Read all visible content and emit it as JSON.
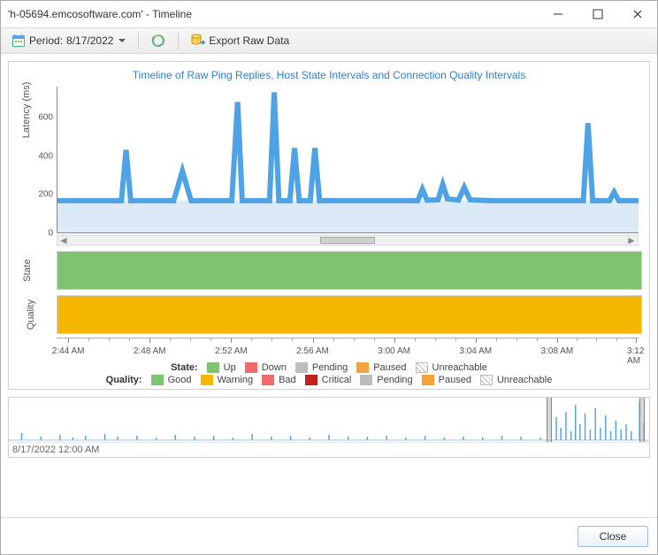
{
  "window": {
    "title": "'h-05694.emcosoftware.com' - Timeline"
  },
  "toolbar": {
    "period_prefix": "Period:",
    "period_value": "8/17/2022",
    "export_label": "Export Raw Data"
  },
  "chart": {
    "title": "Timeline of Raw Ping Replies, Host State Intervals and Connection Quality Intervals",
    "y_label": "Latency (ms)",
    "y_ticks": [
      0,
      200,
      400,
      600
    ],
    "y_max": 760,
    "line_color": "#4da3e6",
    "fill_color": "#dceaf7",
    "baseline": 165,
    "series": [
      [
        0.0,
        165
      ],
      [
        0.06,
        165
      ],
      [
        0.11,
        165
      ],
      [
        0.118,
        430
      ],
      [
        0.126,
        165
      ],
      [
        0.17,
        165
      ],
      [
        0.2,
        165
      ],
      [
        0.215,
        320
      ],
      [
        0.23,
        165
      ],
      [
        0.29,
        165
      ],
      [
        0.3,
        165
      ],
      [
        0.31,
        680
      ],
      [
        0.318,
        165
      ],
      [
        0.34,
        165
      ],
      [
        0.365,
        165
      ],
      [
        0.373,
        730
      ],
      [
        0.381,
        165
      ],
      [
        0.4,
        165
      ],
      [
        0.408,
        440
      ],
      [
        0.416,
        165
      ],
      [
        0.435,
        165
      ],
      [
        0.443,
        440
      ],
      [
        0.451,
        165
      ],
      [
        0.5,
        165
      ],
      [
        0.55,
        165
      ],
      [
        0.6,
        165
      ],
      [
        0.62,
        165
      ],
      [
        0.628,
        225
      ],
      [
        0.636,
        168
      ],
      [
        0.655,
        170
      ],
      [
        0.663,
        250
      ],
      [
        0.671,
        175
      ],
      [
        0.69,
        168
      ],
      [
        0.7,
        235
      ],
      [
        0.71,
        170
      ],
      [
        0.75,
        165
      ],
      [
        0.8,
        165
      ],
      [
        0.85,
        165
      ],
      [
        0.905,
        165
      ],
      [
        0.913,
        570
      ],
      [
        0.921,
        165
      ],
      [
        0.95,
        165
      ],
      [
        0.958,
        210
      ],
      [
        0.966,
        165
      ],
      [
        1.0,
        165
      ]
    ],
    "x_ticks_major": [
      {
        "pos": 0.02,
        "label": "2:44 AM"
      },
      {
        "pos": 0.16,
        "label": "2:48 AM"
      },
      {
        "pos": 0.3,
        "label": "2:52 AM"
      },
      {
        "pos": 0.44,
        "label": "2:56 AM"
      },
      {
        "pos": 0.58,
        "label": "3:00 AM"
      },
      {
        "pos": 0.72,
        "label": "3:04 AM"
      },
      {
        "pos": 0.86,
        "label": "3:08 AM"
      },
      {
        "pos": 0.995,
        "label": "3:12 AM"
      }
    ],
    "minor_ticks_per_major": 4
  },
  "bands": {
    "state": {
      "label": "State",
      "color": "#7ec470"
    },
    "quality": {
      "label": "Quality",
      "color": "#f5b700"
    }
  },
  "legend_state": {
    "title": "State:",
    "items": [
      {
        "label": "Up",
        "color": "#7ec470"
      },
      {
        "label": "Down",
        "color": "#f06a6a"
      },
      {
        "label": "Pending",
        "color": "#bdbdbd"
      },
      {
        "label": "Paused",
        "color": "#f4a23a"
      },
      {
        "label": "Unreachable",
        "hatched": true
      }
    ]
  },
  "legend_quality": {
    "title": "Quality:",
    "items": [
      {
        "label": "Good",
        "color": "#7ec470"
      },
      {
        "label": "Warning",
        "color": "#f5b700"
      },
      {
        "label": "Bad",
        "color": "#f06a6a"
      },
      {
        "label": "Critical",
        "color": "#c21f1f"
      },
      {
        "label": "Pending",
        "color": "#bdbdbd"
      },
      {
        "label": "Paused",
        "color": "#f4a23a"
      },
      {
        "label": "Unreachable",
        "hatched": true
      }
    ]
  },
  "overview": {
    "timestamp_label": "8/17/2022 12:00 AM",
    "line_color": "#4da3e6",
    "handles": [
      0.84,
      0.985
    ],
    "spikes": [
      [
        0.02,
        8
      ],
      [
        0.05,
        4
      ],
      [
        0.08,
        6
      ],
      [
        0.1,
        3
      ],
      [
        0.12,
        5
      ],
      [
        0.15,
        7
      ],
      [
        0.17,
        4
      ],
      [
        0.2,
        5
      ],
      [
        0.23,
        3
      ],
      [
        0.26,
        6
      ],
      [
        0.29,
        4
      ],
      [
        0.32,
        5
      ],
      [
        0.35,
        3
      ],
      [
        0.38,
        7
      ],
      [
        0.41,
        4
      ],
      [
        0.44,
        5
      ],
      [
        0.47,
        3
      ],
      [
        0.5,
        6
      ],
      [
        0.53,
        4
      ],
      [
        0.56,
        4
      ],
      [
        0.59,
        5
      ],
      [
        0.62,
        3
      ],
      [
        0.65,
        5
      ],
      [
        0.68,
        3
      ],
      [
        0.71,
        4
      ],
      [
        0.74,
        3
      ],
      [
        0.77,
        5
      ],
      [
        0.8,
        4
      ],
      [
        0.83,
        3
      ],
      [
        0.855,
        26
      ],
      [
        0.862,
        14
      ],
      [
        0.87,
        32
      ],
      [
        0.878,
        10
      ],
      [
        0.885,
        40
      ],
      [
        0.892,
        18
      ],
      [
        0.9,
        30
      ],
      [
        0.908,
        12
      ],
      [
        0.916,
        36
      ],
      [
        0.924,
        14
      ],
      [
        0.932,
        28
      ],
      [
        0.94,
        10
      ],
      [
        0.948,
        22
      ],
      [
        0.956,
        12
      ],
      [
        0.964,
        18
      ],
      [
        0.972,
        10
      ],
      [
        0.985,
        44
      ],
      [
        0.992,
        20
      ]
    ]
  },
  "footer": {
    "close_label": "Close"
  },
  "colors": {
    "title_link": "#2a7fd4"
  }
}
